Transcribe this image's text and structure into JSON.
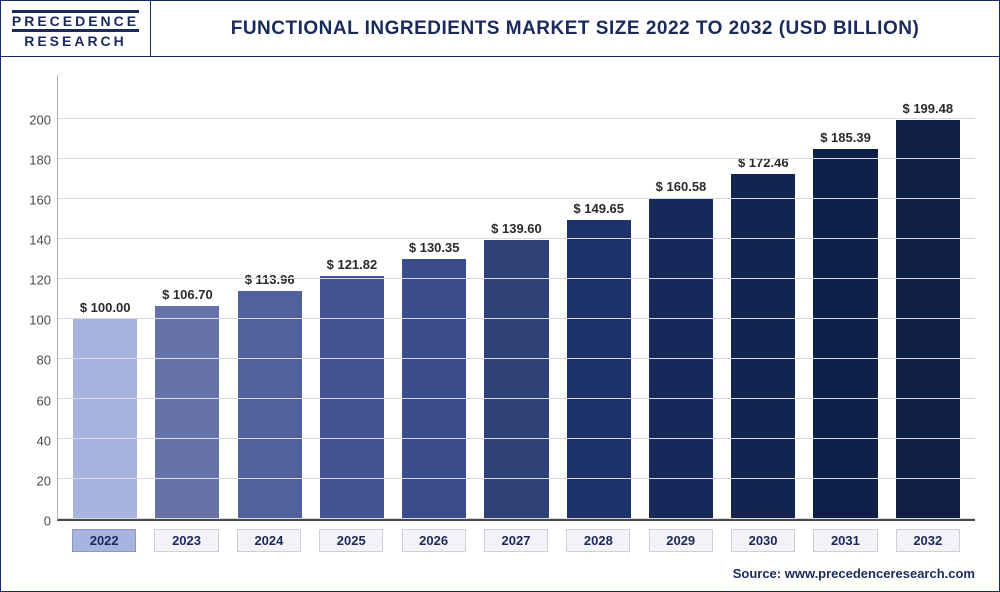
{
  "logo": {
    "line1": "PRECEDENCE",
    "line2": "RESEARCH"
  },
  "title": "FUNCTIONAL INGREDIENTS MARKET SIZE 2022 TO 2032 (USD BILLION)",
  "source": "Source: www.precedenceresearch.com",
  "chart": {
    "type": "bar",
    "ylim": [
      0,
      200
    ],
    "ytick_step": 20,
    "yticks": [
      0,
      20,
      40,
      60,
      80,
      100,
      120,
      140,
      160,
      180,
      200
    ],
    "categories": [
      "2022",
      "2023",
      "2024",
      "2025",
      "2026",
      "2027",
      "2028",
      "2029",
      "2030",
      "2031",
      "2032"
    ],
    "values": [
      100.0,
      106.7,
      113.96,
      121.82,
      130.35,
      139.6,
      149.65,
      160.58,
      172.46,
      185.39,
      199.48
    ],
    "value_labels": [
      "$ 100.00",
      "$ 106.70",
      "$ 113.96",
      "$ 121.82",
      "$ 130.35",
      "$ 139.60",
      "$ 149.65",
      "$ 160.58",
      "$ 172.46",
      "$ 185.39",
      "$ 199.48"
    ],
    "bar_colors": [
      "#a8b4e0",
      "#6573a8",
      "#51619c",
      "#435394",
      "#3a4c8c",
      "#2e4278",
      "#1d3268",
      "#16295a",
      "#12244f",
      "#0f2048",
      "#0e1e45"
    ],
    "highlight_index": 0,
    "grid_color": "#d9d9d9",
    "axis_color": "#4a4a4a",
    "background_color": "#ffffff",
    "label_fontsize": 13,
    "label_font_weight": 700,
    "bar_width": 0.78,
    "aspect_w": 1000,
    "aspect_h": 592
  },
  "colors": {
    "brand": "#1a2a5c",
    "text": "#2a2a2a",
    "chip_bg": "#f2f2f7",
    "chip_border": "#d0d0dc",
    "chip_hl_bg": "#a8b4e0",
    "chip_hl_border": "#8a96c8"
  }
}
